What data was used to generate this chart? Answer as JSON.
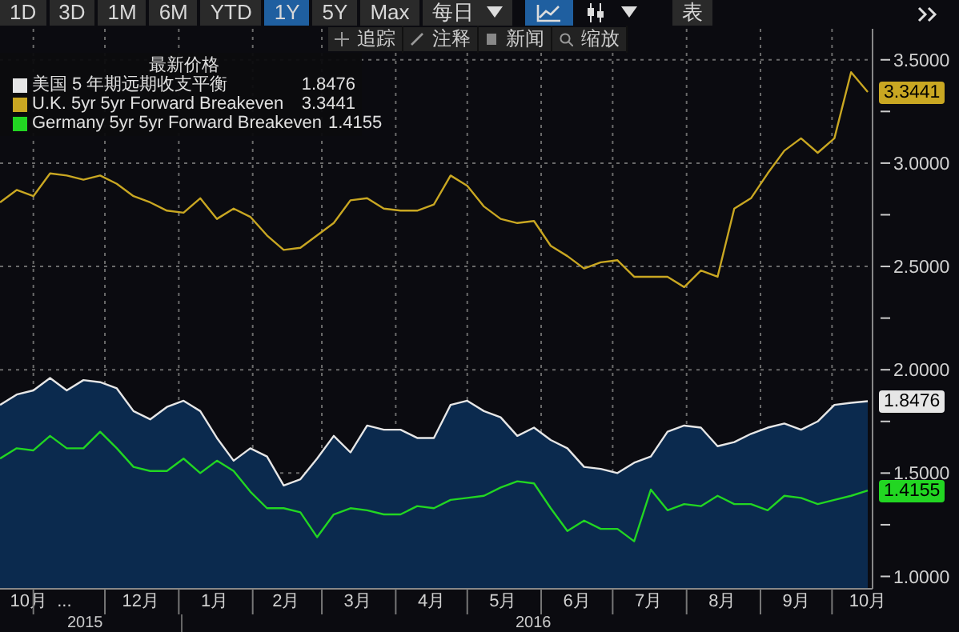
{
  "chart_data": {
    "type": "line",
    "legend_title": "最新价格",
    "legend": "top left",
    "grid": true,
    "annotations": [
      "1D",
      "3D",
      "1M",
      "6M",
      "YTD",
      "1Y",
      "5Y",
      "Max",
      "每日",
      "表",
      "追踪",
      "注释",
      "新闻",
      "缩放",
      "2015",
      "2016"
    ],
    "x": [
      "2015-10-18",
      "2015-10-25",
      "2015-11-01",
      "2015-11-08",
      "2015-11-15",
      "2015-11-22",
      "2015-11-29",
      "2015-12-06",
      "2015-12-13",
      "2015-12-20",
      "2015-12-27",
      "2016-01-03",
      "2016-01-10",
      "2016-01-17",
      "2016-01-24",
      "2016-01-31",
      "2016-02-07",
      "2016-02-14",
      "2016-02-21",
      "2016-02-28",
      "2016-03-06",
      "2016-03-13",
      "2016-03-20",
      "2016-03-27",
      "2016-04-03",
      "2016-04-10",
      "2016-04-17",
      "2016-04-24",
      "2016-05-01",
      "2016-05-08",
      "2016-05-15",
      "2016-05-22",
      "2016-05-29",
      "2016-06-05",
      "2016-06-12",
      "2016-06-19",
      "2016-06-26",
      "2016-07-03",
      "2016-07-10",
      "2016-07-17",
      "2016-07-24",
      "2016-07-31",
      "2016-08-07",
      "2016-08-14",
      "2016-08-21",
      "2016-08-28",
      "2016-09-04",
      "2016-09-11",
      "2016-09-18",
      "2016-09-25",
      "2016-10-02",
      "2016-10-09",
      "2016-10-16"
    ],
    "series": [
      {
        "name": "美国 5 年期远期收支平衡",
        "type": "area",
        "color": "#e6e6e6",
        "values": [
          1.83,
          1.88,
          1.9,
          1.96,
          1.9,
          1.95,
          1.94,
          1.91,
          1.8,
          1.76,
          1.82,
          1.85,
          1.8,
          1.67,
          1.56,
          1.62,
          1.58,
          1.44,
          1.47,
          1.57,
          1.68,
          1.6,
          1.73,
          1.71,
          1.71,
          1.67,
          1.67,
          1.83,
          1.85,
          1.8,
          1.77,
          1.68,
          1.72,
          1.66,
          1.62,
          1.53,
          1.52,
          1.5,
          1.55,
          1.58,
          1.7,
          1.73,
          1.72,
          1.63,
          1.65,
          1.69,
          1.72,
          1.74,
          1.71,
          1.75,
          1.83,
          1.84,
          1.8476
        ],
        "value_labels": [
          null,
          null,
          null,
          null,
          null,
          null,
          null,
          null,
          null,
          null,
          null,
          null,
          null,
          null,
          null,
          null,
          null,
          null,
          null,
          null,
          null,
          null,
          null,
          null,
          null,
          null,
          null,
          null,
          null,
          null,
          null,
          null,
          null,
          null,
          null,
          null,
          null,
          null,
          null,
          null,
          null,
          null,
          null,
          null,
          null,
          null,
          null,
          null,
          null,
          null,
          null,
          null,
          "1.8476"
        ]
      },
      {
        "name": "U.K. 5yr 5yr Forward Breakeven",
        "color": "#c9a722",
        "values": [
          2.81,
          2.87,
          2.84,
          2.95,
          2.94,
          2.92,
          2.94,
          2.9,
          2.84,
          2.81,
          2.77,
          2.76,
          2.83,
          2.73,
          2.78,
          2.74,
          2.65,
          2.58,
          2.59,
          2.65,
          2.71,
          2.82,
          2.83,
          2.78,
          2.77,
          2.77,
          2.8,
          2.94,
          2.89,
          2.79,
          2.73,
          2.71,
          2.72,
          2.6,
          2.55,
          2.49,
          2.52,
          2.53,
          2.45,
          2.45,
          2.45,
          2.4,
          2.48,
          2.45,
          2.78,
          2.83,
          2.95,
          3.06,
          3.12,
          3.05,
          3.12,
          3.44,
          3.3441
        ],
        "value_labels": [
          null,
          null,
          null,
          null,
          null,
          null,
          null,
          null,
          null,
          null,
          null,
          null,
          null,
          null,
          null,
          null,
          null,
          null,
          null,
          null,
          null,
          null,
          null,
          null,
          null,
          null,
          null,
          null,
          null,
          null,
          null,
          null,
          null,
          null,
          null,
          null,
          null,
          null,
          null,
          null,
          null,
          null,
          null,
          null,
          null,
          null,
          null,
          null,
          null,
          null,
          null,
          null,
          "3.3441"
        ]
      },
      {
        "name": "Germany 5yr 5yr Forward Breakeven",
        "color": "#22d622",
        "values": [
          1.57,
          1.62,
          1.61,
          1.68,
          1.62,
          1.62,
          1.7,
          1.62,
          1.53,
          1.51,
          1.51,
          1.57,
          1.5,
          1.56,
          1.51,
          1.41,
          1.33,
          1.33,
          1.31,
          1.19,
          1.3,
          1.33,
          1.32,
          1.3,
          1.3,
          1.34,
          1.33,
          1.37,
          1.38,
          1.39,
          1.43,
          1.46,
          1.45,
          1.33,
          1.22,
          1.27,
          1.23,
          1.23,
          1.17,
          1.42,
          1.32,
          1.35,
          1.34,
          1.39,
          1.35,
          1.35,
          1.32,
          1.39,
          1.38,
          1.35,
          1.37,
          1.39,
          1.4155
        ],
        "value_labels": [
          null,
          null,
          null,
          null,
          null,
          null,
          null,
          null,
          null,
          null,
          null,
          null,
          null,
          null,
          null,
          null,
          null,
          null,
          null,
          null,
          null,
          null,
          null,
          null,
          null,
          null,
          null,
          null,
          null,
          null,
          null,
          null,
          null,
          null,
          null,
          null,
          null,
          null,
          null,
          null,
          null,
          null,
          null,
          null,
          null,
          null,
          null,
          null,
          null,
          null,
          null,
          null,
          "1.4155"
        ]
      }
    ],
    "xlim": [
      "2015-10-18",
      "2016-10-18"
    ],
    "xticks": [
      {
        "value": "2015-10-30",
        "label": "10月"
      },
      {
        "value": "2015-11-01",
        "label": null
      },
      {
        "value": "2015-11-14",
        "label": "..."
      },
      {
        "value": "2015-12-01",
        "label": null
      },
      {
        "value": "2015-12-16",
        "label": "12月"
      },
      {
        "value": "2016-01-01",
        "label": null
      },
      {
        "value": "2016-01-16",
        "label": "1月"
      },
      {
        "value": "2016-02-01",
        "label": null
      },
      {
        "value": "2016-02-15",
        "label": "2月"
      },
      {
        "value": "2016-03-01",
        "label": null
      },
      {
        "value": "2016-03-16",
        "label": "3月"
      },
      {
        "value": "2016-04-01",
        "label": null
      },
      {
        "value": "2016-04-16",
        "label": "4月"
      },
      {
        "value": "2016-05-01",
        "label": null
      },
      {
        "value": "2016-05-16",
        "label": "5月"
      },
      {
        "value": "2016-06-01",
        "label": null
      },
      {
        "value": "2016-06-16",
        "label": "6月"
      },
      {
        "value": "2016-07-01",
        "label": null
      },
      {
        "value": "2016-07-16",
        "label": "7月"
      },
      {
        "value": "2016-08-01",
        "label": null
      },
      {
        "value": "2016-08-16",
        "label": "8月"
      },
      {
        "value": "2016-09-01",
        "label": null
      },
      {
        "value": "2016-09-16",
        "label": "9月"
      },
      {
        "value": "2016-10-01",
        "label": null
      },
      {
        "value": "2016-10-16",
        "label": "10月"
      }
    ],
    "ylim": [
      0.94,
      3.65
    ],
    "yticks": [
      {
        "value": 1,
        "label": "1.0000"
      },
      {
        "value": 1.25,
        "label": null
      },
      {
        "value": 1.5,
        "label": "1.5000"
      },
      {
        "value": 1.75,
        "label": null
      },
      {
        "value": 2,
        "label": "2.0000"
      },
      {
        "value": 2.25,
        "label": null
      },
      {
        "value": 2.5,
        "label": "2.5000"
      },
      {
        "value": 2.75,
        "label": null
      },
      {
        "value": 3,
        "label": "3.0000"
      },
      {
        "value": 3.25,
        "label": null
      },
      {
        "value": 3.5,
        "label": "3.5000"
      }
    ]
  }
}
